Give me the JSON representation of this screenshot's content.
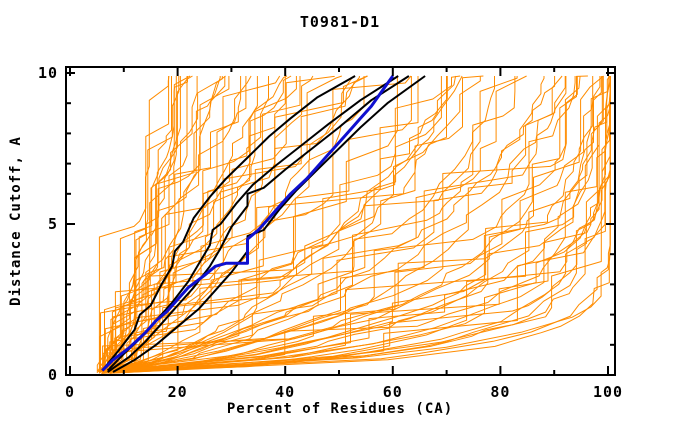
{
  "title": "T0981-D1",
  "chart_data": {
    "type": "line",
    "title": "T0981-D1",
    "xlabel": "Percent of Residues (CA)",
    "ylabel": "Distance Cutoff, A",
    "xlim": [
      0,
      100
    ],
    "ylim": [
      0,
      10
    ],
    "grid": false,
    "legend": "none",
    "x_major_ticks": [
      0,
      20,
      40,
      60,
      80,
      100
    ],
    "x_minor_ticks": [
      10,
      30,
      50,
      70,
      90
    ],
    "y_major_ticks": [
      0,
      5,
      10
    ],
    "y_minor_ticks": [
      1,
      2,
      3,
      4,
      6,
      7,
      8,
      9
    ],
    "colors": {
      "ensemble": "#ff8c00",
      "highlight": "#000000",
      "reference": "#0f0fcf",
      "axis": "#000000",
      "background": "#ffffff"
    },
    "series": [
      {
        "name": "black-model-1",
        "color": "#000000",
        "width": 2,
        "points": [
          [
            6,
            0.15
          ],
          [
            9,
            0.8
          ],
          [
            12,
            1.5
          ],
          [
            13,
            2.0
          ],
          [
            15,
            2.3
          ],
          [
            17,
            3.0
          ],
          [
            19,
            3.6
          ],
          [
            19.5,
            4.1
          ],
          [
            21,
            4.4
          ],
          [
            23,
            5.2
          ],
          [
            26,
            5.9
          ],
          [
            29,
            6.5
          ],
          [
            33,
            7.2
          ],
          [
            37,
            7.9
          ],
          [
            41,
            8.5
          ],
          [
            46,
            9.2
          ],
          [
            53,
            9.9
          ]
        ]
      },
      {
        "name": "black-model-2",
        "color": "#000000",
        "width": 2,
        "points": [
          [
            7,
            0.15
          ],
          [
            10,
            0.7
          ],
          [
            13,
            1.2
          ],
          [
            16,
            1.8
          ],
          [
            19,
            2.4
          ],
          [
            22,
            3.1
          ],
          [
            24,
            3.7
          ],
          [
            26,
            4.3
          ],
          [
            26.5,
            4.8
          ],
          [
            28,
            5.0
          ],
          [
            31,
            5.7
          ],
          [
            34,
            6.3
          ],
          [
            38,
            6.9
          ],
          [
            43,
            7.6
          ],
          [
            48,
            8.3
          ],
          [
            54,
            9.1
          ],
          [
            61,
            9.9
          ]
        ]
      },
      {
        "name": "black-model-3",
        "color": "#000000",
        "width": 2,
        "points": [
          [
            7,
            0.1
          ],
          [
            11,
            0.6
          ],
          [
            14,
            1.1
          ],
          [
            17,
            1.7
          ],
          [
            20,
            2.3
          ],
          [
            23,
            2.9
          ],
          [
            26,
            3.6
          ],
          [
            28,
            4.2
          ],
          [
            30,
            4.9
          ],
          [
            33,
            5.6
          ],
          [
            33,
            6.0
          ],
          [
            36,
            6.2
          ],
          [
            40,
            6.8
          ],
          [
            45,
            7.5
          ],
          [
            50,
            8.2
          ],
          [
            56,
            9.1
          ],
          [
            63,
            9.9
          ]
        ]
      },
      {
        "name": "black-model-4",
        "color": "#000000",
        "width": 2,
        "points": [
          [
            8,
            0.1
          ],
          [
            12,
            0.5
          ],
          [
            16,
            1.0
          ],
          [
            20,
            1.6
          ],
          [
            24,
            2.2
          ],
          [
            27,
            2.8
          ],
          [
            30,
            3.4
          ],
          [
            33,
            4.1
          ],
          [
            33,
            4.6
          ],
          [
            36,
            4.8
          ],
          [
            39,
            5.5
          ],
          [
            42,
            6.1
          ],
          [
            46,
            6.8
          ],
          [
            50,
            7.5
          ],
          [
            54,
            8.2
          ],
          [
            59,
            9.0
          ],
          [
            66,
            9.9
          ]
        ]
      },
      {
        "name": "blue-model",
        "color": "#0f0fcf",
        "width": 3,
        "points": [
          [
            6,
            0.15
          ],
          [
            8,
            0.5
          ],
          [
            11,
            0.9
          ],
          [
            14,
            1.4
          ],
          [
            16,
            1.8
          ],
          [
            18,
            2.1
          ],
          [
            20,
            2.5
          ],
          [
            22,
            2.9
          ],
          [
            25,
            3.3
          ],
          [
            27,
            3.6
          ],
          [
            29,
            3.7
          ],
          [
            33,
            3.7
          ],
          [
            33,
            4.5
          ],
          [
            35,
            4.8
          ],
          [
            37,
            5.2
          ],
          [
            39,
            5.6
          ],
          [
            41,
            6.0
          ],
          [
            44,
            6.5
          ],
          [
            46,
            6.9
          ],
          [
            48,
            7.3
          ],
          [
            50,
            7.7
          ],
          [
            52,
            8.1
          ],
          [
            54,
            8.5
          ],
          [
            56,
            8.9
          ],
          [
            58,
            9.4
          ],
          [
            60,
            9.9
          ]
        ]
      }
    ],
    "ensemble": {
      "name": "orange-models",
      "color": "#ff8c00",
      "width": 1,
      "count": 82,
      "x_start_range": [
        5,
        8.5
      ],
      "x_top_range": [
        17,
        100
      ],
      "y_top": 9.9,
      "sigma_range": [
        0.75,
        90
      ],
      "shape_m_range": [
        0.8,
        1.05
      ],
      "seed": 42,
      "style": "jagged-steps"
    }
  }
}
